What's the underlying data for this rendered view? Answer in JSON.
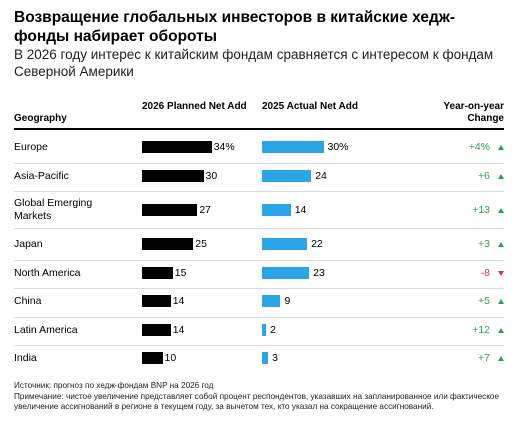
{
  "title": "Возвращение глобальных инвесторов в китайские хедж-фонды набирает обороты",
  "subtitle": "В 2026 году интерес к китайским фондам сравняется с интересом к фондам Северной Америки",
  "headers": {
    "geography": "Geography",
    "planned": "2026 Planned Net Add",
    "actual": "2025 Actual Net Add",
    "yoy": "Year-on-year Change"
  },
  "colors": {
    "planned_bar": "#000000",
    "actual_bar": "#2ca5e8",
    "positive": "#2e9e57",
    "negative": "#d2334c"
  },
  "chart_data": {
    "type": "bar",
    "categories": [
      "Europe",
      "Asia-Pacific",
      "Global Emerging Markets",
      "Japan",
      "North America",
      "China",
      "Latin America",
      "India"
    ],
    "category_labels": [
      "Europe",
      "Asia-Pacific",
      "Global Emerging\nMarkets",
      "Japan",
      "North America",
      "China",
      "Latin America",
      "India"
    ],
    "series": [
      {
        "name": "2026 Planned Net Add",
        "values": [
          34,
          30,
          27,
          25,
          15,
          14,
          14,
          10
        ],
        "labels": [
          "34%",
          "30",
          "27",
          "25",
          "15",
          "14",
          "14",
          "10"
        ]
      },
      {
        "name": "2025 Actual Net Add",
        "values": [
          30,
          24,
          14,
          22,
          23,
          9,
          2,
          3
        ],
        "labels": [
          "30%",
          "24",
          "14",
          "22",
          "23",
          "9",
          "2",
          "3"
        ]
      }
    ],
    "yoy_change": [
      4,
      6,
      13,
      3,
      -8,
      5,
      12,
      7
    ],
    "yoy_labels": [
      "+4%",
      "+6",
      "+13",
      "+3",
      "-8",
      "+5",
      "+12",
      "+7"
    ]
  },
  "source": "Источник: прогноз по хедж-фондам BNP на 2026 год",
  "note": "Примечание: чистое увеличение представляет собой процент респондентов, указавших на запланированное или фактическое увеличение ассигнований в регионе в текущем году, за вычетом тех, кто указал на сокращение ассигнований."
}
